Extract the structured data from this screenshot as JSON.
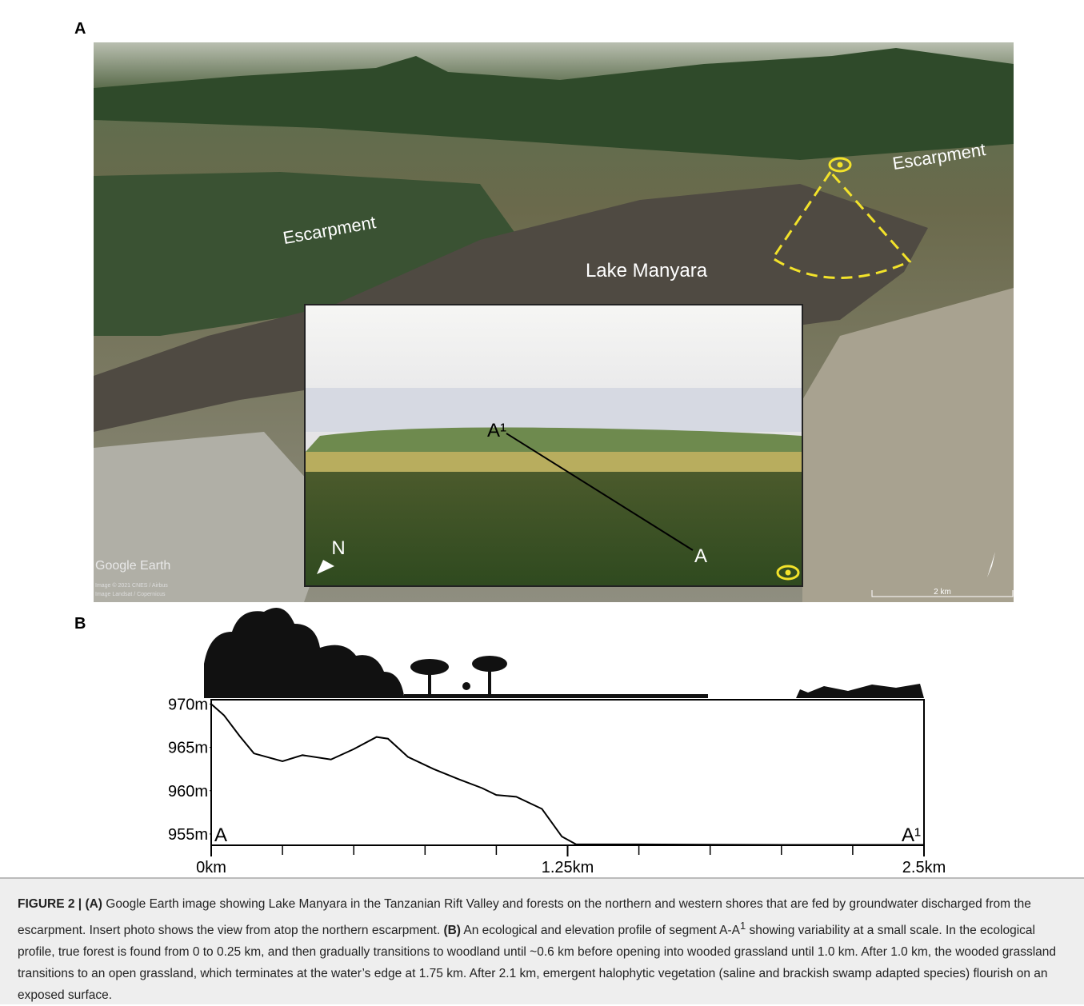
{
  "panel_a": {
    "letter": "A",
    "escarpment_left": "Escarpment",
    "escarpment_right": "Escarpment",
    "lake": "Lake Manyara",
    "inset": {
      "point_top": "A¹",
      "point_bottom": "A",
      "north": "N"
    },
    "google_earth": "Google Earth",
    "credit_1": "Image © 2021 CNES / Airbus",
    "credit_2": "Image Landsat / Copernicus",
    "scale": "2 km"
  },
  "panel_b": {
    "letter": "B"
  },
  "chart_data": {
    "type": "line",
    "start_label": "A",
    "end_label": "A¹",
    "color": "#000000",
    "x": [
      0,
      0.045,
      0.1,
      0.15,
      0.25,
      0.32,
      0.42,
      0.5,
      0.58,
      0.62,
      0.69,
      0.78,
      0.87,
      0.95,
      1.0,
      1.07,
      1.16,
      1.23,
      1.28,
      1.5,
      2.0,
      2.5
    ],
    "values": [
      970,
      968.7,
      966.3,
      964.3,
      963.4,
      964.1,
      963.6,
      964.8,
      966.2,
      966,
      963.9,
      962.5,
      961.3,
      960.3,
      959.5,
      959.3,
      957.9,
      954.7,
      953.8,
      953.8,
      953.75,
      953.75
    ],
    "xlim": [
      0,
      2.5
    ],
    "ylim": [
      953.7,
      970.5
    ],
    "xticks": [
      {
        "value": 0,
        "label": "0km"
      },
      {
        "value": 1.25,
        "label": "1.25km"
      },
      {
        "value": 2.5,
        "label": "2.5km"
      }
    ],
    "xminorticks": [
      0.25,
      0.5,
      0.75,
      1.0,
      1.5,
      1.75,
      2.0,
      2.25
    ],
    "yticks": [
      {
        "value": 970,
        "label": "970m"
      },
      {
        "value": 965,
        "label": "965m"
      },
      {
        "value": 960,
        "label": "960m"
      },
      {
        "value": 955,
        "label": "955m"
      }
    ]
  },
  "caption": {
    "figure": "FIGURE 2 |",
    "a_tag": "(A)",
    "a_text": " Google Earth image showing Lake Manyara in the Tanzanian Rift Valley and forests on the northern and western shores that are fed by groundwater discharged from the escarpment. Insert photo shows the view from atop the northern escarpment. ",
    "b_tag": "(B)",
    "b_text_1": " An ecological and elevation profile of segment A-A",
    "b_sup": "1",
    "b_text_2": " showing variability at a small scale. In the ecological profile, true forest is found from 0 to 0.25 km, and then gradually transitions to woodland until ~0.6 km before opening into wooded grassland until 1.0 km. After 1.0 km, the wooded grassland transitions to an open grassland, which terminates at the water’s edge at 1.75 km. After 2.1 km, emergent halophytic vegetation (saline and brackish swamp adapted species) flourish on an exposed surface."
  }
}
